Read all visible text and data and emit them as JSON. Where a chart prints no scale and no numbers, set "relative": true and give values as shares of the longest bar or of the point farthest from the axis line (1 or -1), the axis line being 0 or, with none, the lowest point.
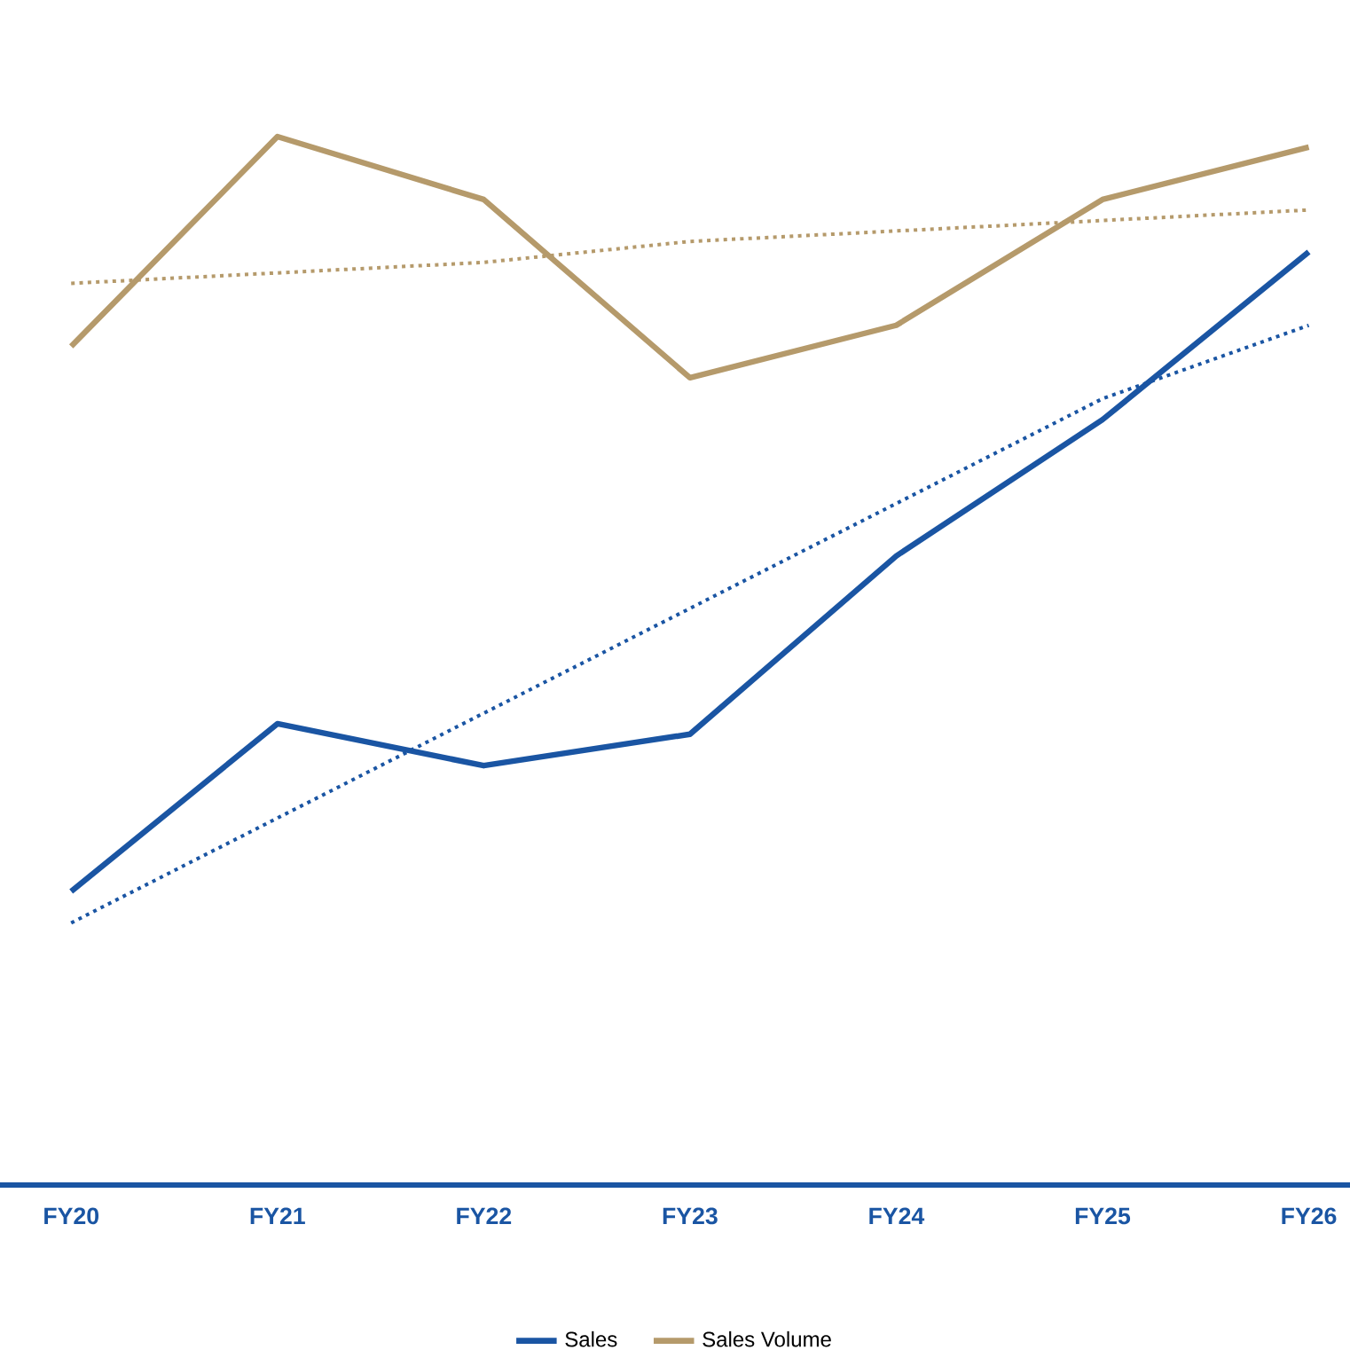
{
  "chart_data": {
    "type": "line",
    "relative": true,
    "categories": [
      "FY20",
      "FY21",
      "FY22",
      "FY23",
      "FY24",
      "FY25",
      "FY26"
    ],
    "series": [
      {
        "name": "Sales",
        "color": "#1a55a3",
        "values": [
          0.28,
          0.44,
          0.4,
          0.43,
          0.6,
          0.73,
          0.89
        ],
        "line_style": "solid"
      },
      {
        "name": "Sales Volume",
        "color": "#b59a6b",
        "values": [
          0.8,
          1,
          0.94,
          0.77,
          0.82,
          0.94,
          0.99
        ],
        "line_style": "solid"
      },
      {
        "color": "#1a55a3",
        "values": [
          0.25,
          0.35,
          0.45,
          0.55,
          0.65,
          0.75,
          0.82
        ],
        "line_style": "dotted"
      },
      {
        "color": "#b59a6b",
        "values": [
          0.86,
          0.87,
          0.88,
          0.9,
          0.91,
          0.92,
          0.93
        ],
        "line_style": "dotted"
      }
    ],
    "legend": "bottom",
    "marker": "none"
  }
}
